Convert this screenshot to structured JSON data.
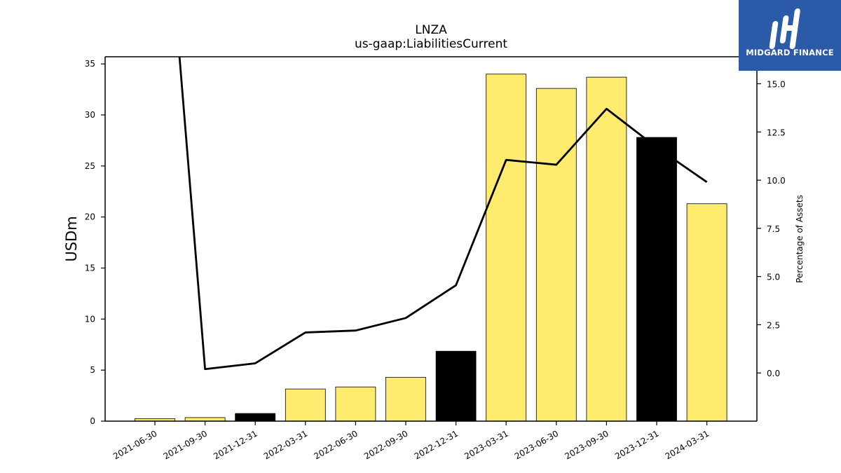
{
  "chart_data": {
    "type": "bar",
    "title": "LNZA",
    "subtitle": "us-gaap:LiabilitiesCurrent",
    "categories": [
      "2021-06-30",
      "2021-09-30",
      "2021-12-31",
      "2022-03-31",
      "2022-06-30",
      "2022-09-30",
      "2022-12-31",
      "2023-03-31",
      "2023-06-30",
      "2023-09-30",
      "2023-12-31",
      "2024-03-31"
    ],
    "series": [
      {
        "values": [
          0.25,
          0.35,
          0.75,
          3.15,
          3.35,
          4.3,
          6.85,
          34.0,
          32.6,
          33.7,
          27.8,
          21.3
        ],
        "colors": [
          "#ffec6e",
          "#ffec6e",
          "#000000",
          "#ffec6e",
          "#ffec6e",
          "#ffec6e",
          "#000000",
          "#ffec6e",
          "#ffec6e",
          "#ffec6e",
          "#000000",
          "#ffec6e"
        ]
      },
      {
        "axis": "right",
        "type": "line",
        "values": [
          32.0,
          0.2,
          0.5,
          2.1,
          2.2,
          2.85,
          4.55,
          11.05,
          10.8,
          13.7,
          11.7,
          9.9
        ]
      }
    ],
    "xlabel": "",
    "ylabel": "USDm",
    "y2label": "Percentage of Assets",
    "ylim": [
      0,
      35.7
    ],
    "y2lim": [
      -2.5,
      16.4
    ],
    "yticks": [
      "0",
      "5",
      "10",
      "15",
      "20",
      "25",
      "30",
      "35"
    ],
    "y2ticks": [
      "0.0",
      "2.5",
      "5.0",
      "7.5",
      "10.0",
      "12.5",
      "15.0"
    ],
    "grid": false,
    "legend": "none"
  },
  "logo": {
    "text": "MIDGARD FINANCE",
    "bg": "#2b5aa8"
  }
}
